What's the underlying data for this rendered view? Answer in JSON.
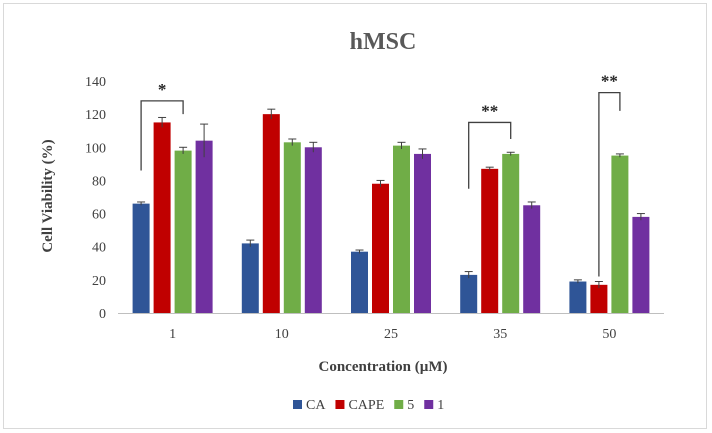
{
  "chart_data": {
    "type": "bar",
    "title": "hMSC",
    "xlabel": "Concentration (µM)",
    "ylabel": "Cell Viability (%)",
    "ylim": [
      0,
      140
    ],
    "yticks": [
      0,
      20,
      40,
      60,
      80,
      100,
      120,
      140
    ],
    "grid": false,
    "legend_position": "bottom",
    "categories": [
      "1",
      "10",
      "25",
      "35",
      "50"
    ],
    "series": [
      {
        "name": "CA",
        "color": "#2f5597",
        "values": [
          66,
          42,
          37,
          23,
          19
        ],
        "errors": [
          1,
          2,
          1,
          2,
          1
        ]
      },
      {
        "name": "CAPE",
        "color": "#c00000",
        "values": [
          115,
          120,
          78,
          87,
          17
        ],
        "errors": [
          3,
          3,
          2,
          1,
          2
        ]
      },
      {
        "name": "5",
        "color": "#70ad47",
        "values": [
          98,
          103,
          101,
          96,
          95
        ],
        "errors": [
          2,
          2,
          2,
          1,
          1
        ]
      },
      {
        "name": "1",
        "color": "#7030a0",
        "values": [
          104,
          100,
          96,
          65,
          58
        ],
        "errors": [
          10,
          3,
          3,
          2,
          2
        ]
      }
    ],
    "annotations": [
      {
        "text": "*",
        "category": "1"
      },
      {
        "text": "**",
        "category": "35"
      },
      {
        "text": "**",
        "category": "50"
      }
    ]
  }
}
